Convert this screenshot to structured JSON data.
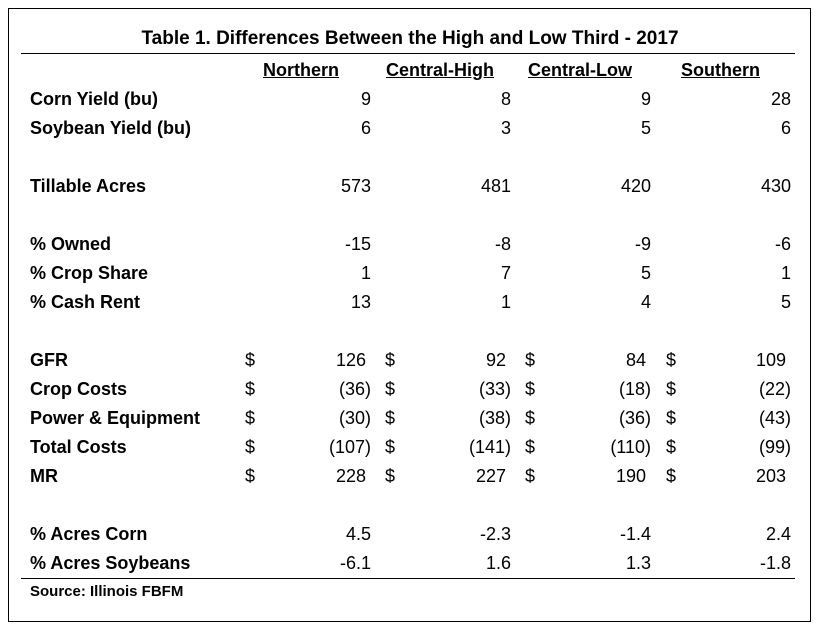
{
  "title": "Table 1.  Differences Between the High and Low Third - 2017",
  "columns": [
    "Northern",
    "Central-High",
    "Central-Low",
    "Southern"
  ],
  "rows": [
    {
      "label": "Corn Yield (bu)",
      "values": [
        "9",
        "8",
        "9",
        "28"
      ]
    },
    {
      "label": "Soybean Yield (bu)",
      "values": [
        "6",
        "3",
        "5",
        "6"
      ]
    },
    {
      "label": "Tillable Acres",
      "values": [
        "573",
        "481",
        "420",
        "430"
      ]
    },
    {
      "label": "% Owned",
      "values": [
        "-15",
        "-8",
        "-9",
        "-6"
      ]
    },
    {
      "label": "% Crop Share",
      "values": [
        "1",
        "7",
        "5",
        "1"
      ]
    },
    {
      "label": "% Cash Rent",
      "values": [
        "13",
        "1",
        "4",
        "5"
      ]
    },
    {
      "label": "GFR",
      "currency": "$",
      "values": [
        "126 ",
        "92 ",
        "84 ",
        "109 "
      ]
    },
    {
      "label": "Crop Costs",
      "currency": "$",
      "values": [
        "(36)",
        "(33)",
        "(18)",
        "(22)"
      ]
    },
    {
      "label": "Power & Equipment",
      "currency": "$",
      "values": [
        "(30)",
        "(38)",
        "(36)",
        "(43)"
      ]
    },
    {
      "label": "Total Costs",
      "currency": "$",
      "values": [
        "(107)",
        "(141)",
        "(110)",
        "(99)"
      ]
    },
    {
      "label": "MR",
      "currency": "$",
      "values": [
        "228 ",
        "227 ",
        "190 ",
        "203 "
      ]
    },
    {
      "label": "% Acres Corn",
      "values": [
        "4.5",
        "-2.3",
        "-1.4",
        "2.4"
      ]
    },
    {
      "label": "% Acres Soybeans",
      "values": [
        "-6.1",
        "1.6",
        "1.3",
        "-1.8"
      ]
    }
  ],
  "source": "Source:  Illinois FBFM"
}
